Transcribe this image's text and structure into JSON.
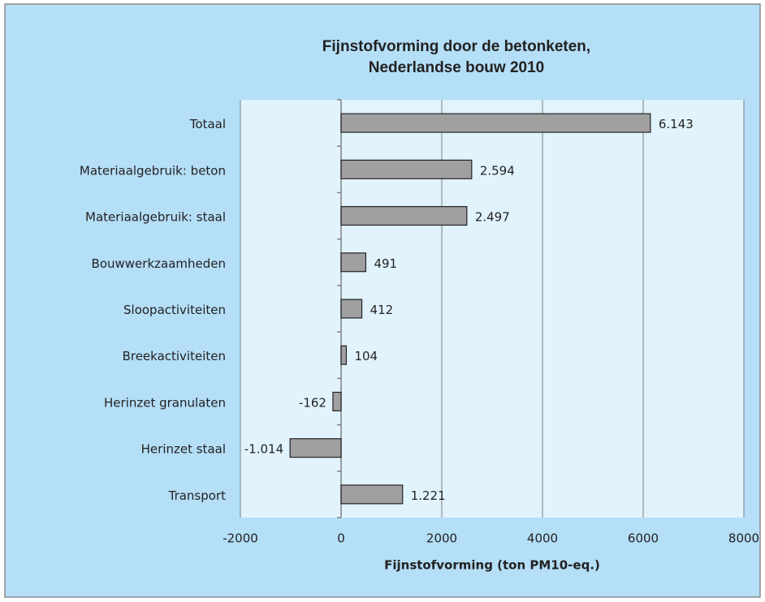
{
  "chart_data": {
    "type": "bar",
    "orientation": "horizontal",
    "title": [
      "Fijnstofvorming door de betonketen,",
      "Nederlandse bouw 2010"
    ],
    "x_label": "Fijnstofvorming (ton PM10-eq.)",
    "categories": [
      "Totaal",
      "Materiaalgebruik: beton",
      "Materiaalgebruik: staal",
      "Bouwwerkzaamheden",
      "Sloopactiviteiten",
      "Breekactiviteiten",
      "Herinzet granulaten",
      "Herinzet staal",
      "Transport"
    ],
    "values": [
      6143,
      2594,
      2497,
      491,
      412,
      104,
      -162,
      -1014,
      1221
    ],
    "value_labels": [
      "6.143",
      "2.594",
      "2.497",
      "491",
      "412",
      "104",
      "-162",
      "-1.014",
      "1.221"
    ],
    "color": "#a0a0a0",
    "xlim": [
      -2000,
      8000
    ],
    "xticks": [
      -2000,
      0,
      2000,
      4000,
      6000,
      8000
    ],
    "grid": true
  }
}
